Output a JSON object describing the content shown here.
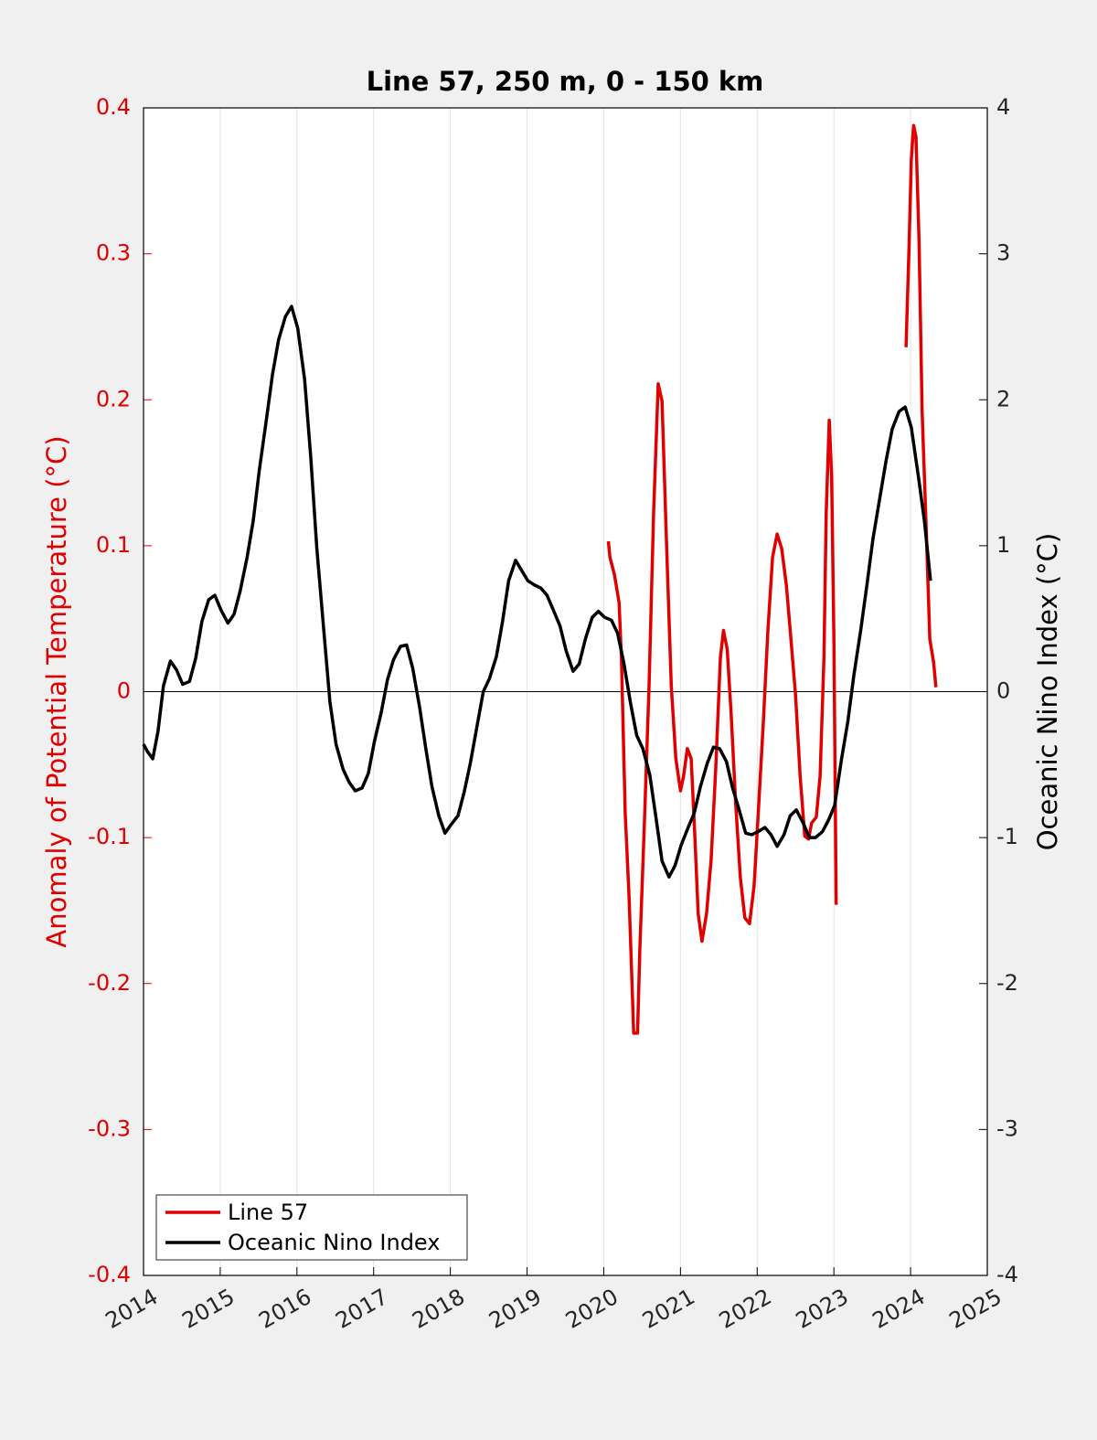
{
  "chart_data": {
    "type": "line",
    "title": "Line 57, 250 m, 0 - 150 km",
    "y_label": "Anomaly of Potential Temperature (°C)",
    "y2_label": "Oceanic Nino Index (°C)",
    "xlim": [
      2014,
      2025
    ],
    "xticks": [
      2014,
      2015,
      2016,
      2017,
      2018,
      2019,
      2020,
      2021,
      2022,
      2023,
      2024,
      2025
    ],
    "ylim": [
      -0.4,
      0.4
    ],
    "yticks": [
      -0.4,
      -0.3,
      -0.2,
      -0.1,
      0,
      0.1,
      0.2,
      0.3,
      0.4
    ],
    "y2lim": [
      -4,
      4
    ],
    "y2ticks": [
      -4,
      -3,
      -2,
      -1,
      0,
      1,
      2,
      3,
      4
    ],
    "grid": true,
    "legend": "lower left",
    "y_label_color": "#e00000",
    "series": [
      {
        "name": "Line 57",
        "color": "#e00000",
        "axis": "y",
        "x": [
          2020.06,
          2020.08,
          2020.14,
          2020.2,
          2020.23,
          2020.28,
          2020.33,
          2020.39,
          2020.44,
          2020.47,
          2020.53,
          2020.59,
          2020.65,
          2020.71,
          2020.76,
          2020.82,
          2020.88,
          2020.94,
          2021.0,
          2021.04,
          2021.09,
          2021.14,
          2021.19,
          2021.23,
          2021.28,
          2021.34,
          2021.4,
          2021.46,
          2021.52,
          2021.56,
          2021.61,
          2021.66,
          2021.72,
          2021.78,
          2021.84,
          2021.9,
          2021.96,
          2022.02,
          2022.08,
          2022.14,
          2022.2,
          2022.26,
          2022.32,
          2022.38,
          2022.44,
          2022.5,
          2022.56,
          2022.62,
          2022.67,
          2022.71,
          2022.77,
          2022.82,
          2022.87,
          2022.9,
          2022.94,
          2022.97,
          2023.0,
          2023.03,
          2023.5,
          2023.94,
          2023.98,
          2024.01,
          2024.04,
          2024.07,
          2024.11,
          2024.15,
          2024.2,
          2024.25,
          2024.3,
          2024.33
        ],
        "values": [
          0.103,
          0.092,
          0.08,
          0.061,
          0.023,
          -0.083,
          -0.14,
          -0.234,
          -0.234,
          -0.177,
          -0.09,
          0.004,
          0.123,
          0.211,
          0.199,
          0.098,
          0.004,
          -0.046,
          -0.068,
          -0.058,
          -0.039,
          -0.046,
          -0.102,
          -0.152,
          -0.171,
          -0.152,
          -0.115,
          -0.052,
          0.023,
          0.042,
          0.029,
          -0.014,
          -0.077,
          -0.127,
          -0.155,
          -0.159,
          -0.133,
          -0.077,
          -0.021,
          0.042,
          0.092,
          0.108,
          0.098,
          0.073,
          0.036,
          -0.002,
          -0.058,
          -0.099,
          -0.101,
          -0.09,
          -0.086,
          -0.058,
          0.023,
          0.123,
          0.186,
          0.148,
          0.036,
          -0.146,
          null,
          0.236,
          0.305,
          0.365,
          0.388,
          0.38,
          0.31,
          0.192,
          0.117,
          0.036,
          0.02,
          0.003
        ]
      },
      {
        "name": "Oceanic Nino Index",
        "color": "#000000",
        "axis": "y2",
        "x": [
          2014.0,
          2014.05,
          2014.12,
          2014.19,
          2014.26,
          2014.35,
          2014.43,
          2014.51,
          2014.6,
          2014.68,
          2014.76,
          2014.85,
          2014.93,
          2015.01,
          2015.1,
          2015.18,
          2015.26,
          2015.35,
          2015.43,
          2015.51,
          2015.6,
          2015.68,
          2015.76,
          2015.85,
          2015.93,
          2016.01,
          2016.1,
          2016.18,
          2016.26,
          2016.35,
          2016.43,
          2016.51,
          2016.6,
          2016.68,
          2016.76,
          2016.85,
          2016.93,
          2017.01,
          2017.1,
          2017.18,
          2017.26,
          2017.35,
          2017.43,
          2017.51,
          2017.6,
          2017.68,
          2017.76,
          2017.85,
          2017.93,
          2018.01,
          2018.1,
          2018.18,
          2018.26,
          2018.35,
          2018.43,
          2018.51,
          2018.6,
          2018.68,
          2018.76,
          2018.85,
          2018.93,
          2019.01,
          2019.1,
          2019.18,
          2019.26,
          2019.35,
          2019.43,
          2019.51,
          2019.6,
          2019.68,
          2019.76,
          2019.85,
          2019.93,
          2020.01,
          2020.1,
          2020.18,
          2020.26,
          2020.35,
          2020.43,
          2020.51,
          2020.6,
          2020.68,
          2020.76,
          2020.85,
          2020.93,
          2021.01,
          2021.1,
          2021.18,
          2021.26,
          2021.35,
          2021.43,
          2021.51,
          2021.6,
          2021.68,
          2021.76,
          2021.85,
          2021.93,
          2022.01,
          2022.1,
          2022.18,
          2022.26,
          2022.35,
          2022.43,
          2022.51,
          2022.6,
          2022.68,
          2022.76,
          2022.85,
          2022.93,
          2023.01,
          2023.1,
          2023.18,
          2023.26,
          2023.35,
          2023.43,
          2023.51,
          2023.6,
          2023.68,
          2023.76,
          2023.85,
          2023.93,
          2024.01,
          2024.1,
          2024.18,
          2024.26
        ],
        "values": [
          -0.36,
          -0.41,
          -0.46,
          -0.27,
          0.04,
          0.21,
          0.15,
          0.05,
          0.07,
          0.23,
          0.48,
          0.63,
          0.66,
          0.56,
          0.47,
          0.53,
          0.69,
          0.92,
          1.17,
          1.52,
          1.86,
          2.17,
          2.41,
          2.57,
          2.64,
          2.49,
          2.14,
          1.61,
          0.98,
          0.42,
          -0.07,
          -0.36,
          -0.53,
          -0.62,
          -0.68,
          -0.66,
          -0.56,
          -0.34,
          -0.14,
          0.08,
          0.22,
          0.31,
          0.32,
          0.16,
          -0.11,
          -0.39,
          -0.65,
          -0.85,
          -0.97,
          -0.91,
          -0.85,
          -0.69,
          -0.49,
          -0.23,
          0,
          0.09,
          0.24,
          0.48,
          0.76,
          0.9,
          0.83,
          0.76,
          0.73,
          0.71,
          0.66,
          0.55,
          0.45,
          0.28,
          0.14,
          0.19,
          0.36,
          0.51,
          0.55,
          0.51,
          0.49,
          0.4,
          0.2,
          -0.08,
          -0.3,
          -0.39,
          -0.57,
          -0.86,
          -1.16,
          -1.27,
          -1.19,
          -1.05,
          -0.93,
          -0.83,
          -0.65,
          -0.49,
          -0.38,
          -0.39,
          -0.48,
          -0.66,
          -0.8,
          -0.97,
          -0.98,
          -0.96,
          -0.93,
          -0.98,
          -1.06,
          -0.98,
          -0.85,
          -0.81,
          -0.9,
          -1.0,
          -1.0,
          -0.96,
          -0.88,
          -0.78,
          -0.46,
          -0.21,
          0.11,
          0.42,
          0.73,
          1.05,
          1.33,
          1.58,
          1.8,
          1.92,
          1.95,
          1.81,
          1.48,
          1.17,
          0.76
        ]
      }
    ]
  }
}
